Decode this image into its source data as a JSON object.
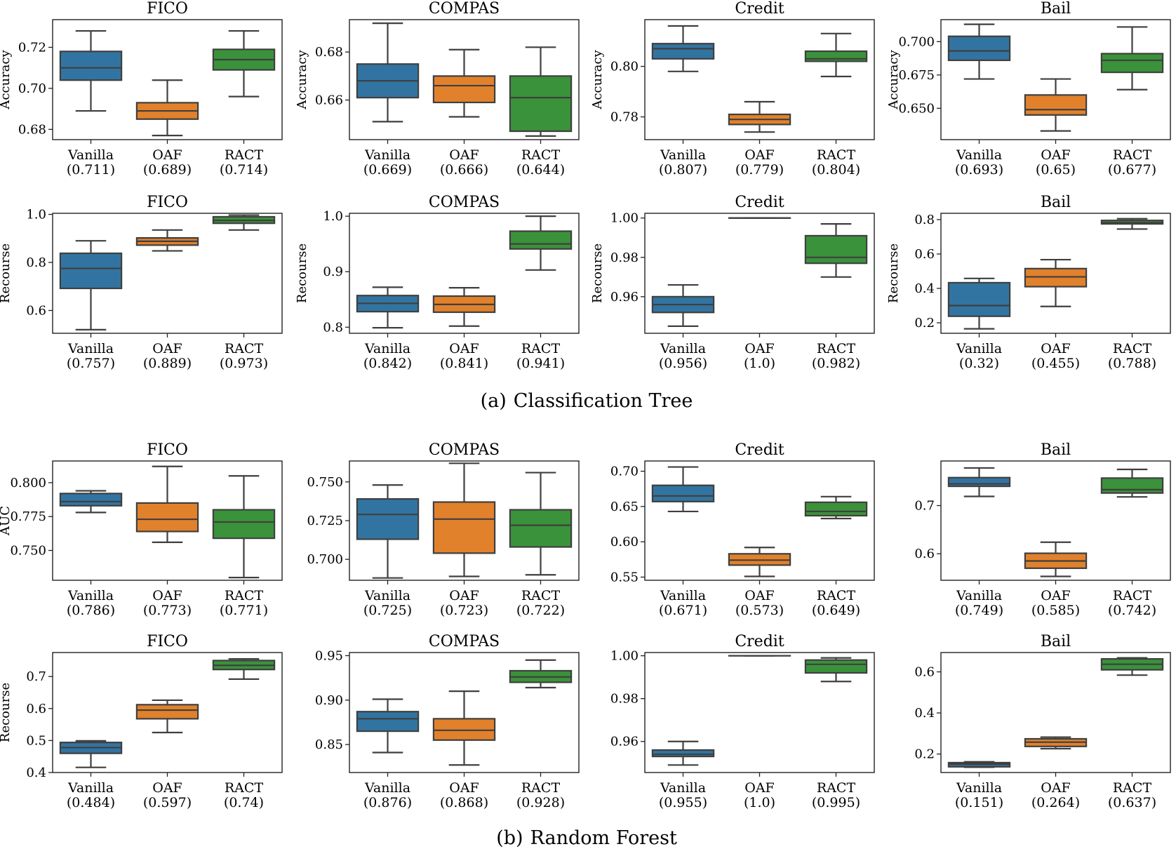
{
  "colors": {
    "Vanilla": "#3274a1",
    "OAF": "#e1812c",
    "RACT": "#3a923a",
    "edge": "#3f3f3f"
  },
  "captions": [
    {
      "label": "(a)",
      "text": "Classification Tree"
    },
    {
      "label": "(b)",
      "text": "Random Forest"
    }
  ],
  "chart_data": [
    {
      "type": "box",
      "model": "Classification Tree",
      "title": "FICO",
      "ylabel": "Accuracy",
      "ylim": [
        0.675,
        0.7335
      ],
      "yticks": [
        0.68,
        0.7,
        0.72
      ],
      "tickfmt": "0.00",
      "categories": [
        "Vanilla",
        "OAF",
        "RACT"
      ],
      "means": [
        "(0.711)",
        "(0.689)",
        "(0.714)"
      ],
      "boxes": [
        {
          "whislo": 0.689,
          "q1": 0.704,
          "med": 0.71,
          "q3": 0.718,
          "whishi": 0.728
        },
        {
          "whislo": 0.677,
          "q1": 0.685,
          "med": 0.689,
          "q3": 0.693,
          "whishi": 0.704
        },
        {
          "whislo": 0.696,
          "q1": 0.709,
          "med": 0.714,
          "q3": 0.719,
          "whishi": 0.728
        }
      ]
    },
    {
      "type": "box",
      "model": "Classification Tree",
      "title": "COMPAS",
      "ylabel": "Accuracy",
      "ylim": [
        0.6435,
        0.6935
      ],
      "yticks": [
        0.66,
        0.68
      ],
      "tickfmt": "0.00",
      "categories": [
        "Vanilla",
        "OAF",
        "RACT"
      ],
      "means": [
        "(0.669)",
        "(0.666)",
        "(0.644)"
      ],
      "boxes": [
        {
          "whislo": 0.651,
          "q1": 0.661,
          "med": 0.668,
          "q3": 0.675,
          "whishi": 0.692
        },
        {
          "whislo": 0.653,
          "q1": 0.659,
          "med": 0.666,
          "q3": 0.67,
          "whishi": 0.681
        },
        {
          "whislo": 0.645,
          "q1": 0.647,
          "med": 0.661,
          "q3": 0.67,
          "whishi": 0.682
        }
      ]
    },
    {
      "type": "box",
      "model": "Classification Tree",
      "title": "Credit",
      "ylabel": "Accuracy",
      "ylim": [
        0.771,
        0.8185
      ],
      "yticks": [
        0.78,
        0.8
      ],
      "tickfmt": "0.00",
      "categories": [
        "Vanilla",
        "OAF",
        "RACT"
      ],
      "means": [
        "(0.807)",
        "(0.779)",
        "(0.804)"
      ],
      "boxes": [
        {
          "whislo": 0.798,
          "q1": 0.803,
          "med": 0.807,
          "q3": 0.809,
          "whishi": 0.816
        },
        {
          "whislo": 0.774,
          "q1": 0.777,
          "med": 0.779,
          "q3": 0.781,
          "whishi": 0.786
        },
        {
          "whislo": 0.796,
          "q1": 0.802,
          "med": 0.803,
          "q3": 0.806,
          "whishi": 0.813
        }
      ]
    },
    {
      "type": "box",
      "model": "Classification Tree",
      "title": "Bail",
      "ylabel": "Accuracy",
      "ylim": [
        0.6265,
        0.7165
      ],
      "yticks": [
        0.65,
        0.675,
        0.7
      ],
      "tickfmt": "0.000",
      "categories": [
        "Vanilla",
        "OAF",
        "RACT"
      ],
      "means": [
        "(0.693)",
        "(0.65)",
        "(0.677)"
      ],
      "boxes": [
        {
          "whislo": 0.672,
          "q1": 0.686,
          "med": 0.693,
          "q3": 0.704,
          "whishi": 0.713
        },
        {
          "whislo": 0.633,
          "q1": 0.645,
          "med": 0.649,
          "q3": 0.66,
          "whishi": 0.672
        },
        {
          "whislo": 0.664,
          "q1": 0.677,
          "med": 0.686,
          "q3": 0.691,
          "whishi": 0.711
        }
      ]
    },
    {
      "type": "box",
      "model": "Classification Tree",
      "title": "FICO",
      "ylabel": "Recourse",
      "ylim": [
        0.505,
        1.0045
      ],
      "yticks": [
        0.6,
        0.8,
        1.0
      ],
      "tickfmt": "0.0",
      "categories": [
        "Vanilla",
        "OAF",
        "RACT"
      ],
      "means": [
        "(0.757)",
        "(0.889)",
        "(0.973)"
      ],
      "boxes": [
        {
          "whislo": 0.52,
          "q1": 0.692,
          "med": 0.775,
          "q3": 0.838,
          "whishi": 0.89
        },
        {
          "whislo": 0.848,
          "q1": 0.872,
          "med": 0.888,
          "q3": 0.902,
          "whishi": 0.935
        },
        {
          "whislo": 0.935,
          "q1": 0.963,
          "med": 0.975,
          "q3": 0.99,
          "whishi": 0.997
        }
      ]
    },
    {
      "type": "box",
      "model": "Classification Tree",
      "title": "COMPAS",
      "ylabel": "Recourse",
      "ylim": [
        0.789,
        1.0052
      ],
      "yticks": [
        0.8,
        0.9,
        1.0
      ],
      "tickfmt": "0.0",
      "categories": [
        "Vanilla",
        "OAF",
        "RACT"
      ],
      "means": [
        "(0.842)",
        "(0.841)",
        "(0.941)"
      ],
      "boxes": [
        {
          "whislo": 0.799,
          "q1": 0.828,
          "med": 0.843,
          "q3": 0.857,
          "whishi": 0.872
        },
        {
          "whislo": 0.802,
          "q1": 0.827,
          "med": 0.841,
          "q3": 0.856,
          "whishi": 0.871
        },
        {
          "whislo": 0.903,
          "q1": 0.941,
          "med": 0.95,
          "q3": 0.973,
          "whishi": 1.0
        }
      ]
    },
    {
      "type": "box",
      "model": "Classification Tree",
      "title": "Credit",
      "ylabel": "Recourse",
      "ylim": [
        0.9414,
        1.0024
      ],
      "yticks": [
        0.96,
        0.98,
        1.0
      ],
      "tickfmt": "0.00",
      "categories": [
        "Vanilla",
        "OAF",
        "RACT"
      ],
      "means": [
        "(0.956)",
        "(1.0)",
        "(0.982)"
      ],
      "boxes": [
        {
          "whislo": 0.945,
          "q1": 0.952,
          "med": 0.956,
          "q3": 0.96,
          "whishi": 0.966
        },
        {
          "whislo": 1.0,
          "q1": 1.0,
          "med": 1.0,
          "q3": 1.0,
          "whishi": 1.0
        },
        {
          "whislo": 0.97,
          "q1": 0.977,
          "med": 0.98,
          "q3": 0.991,
          "whishi": 0.997
        }
      ]
    },
    {
      "type": "box",
      "model": "Classification Tree",
      "title": "Bail",
      "ylabel": "Recourse",
      "ylim": [
        0.139,
        0.8365
      ],
      "yticks": [
        0.2,
        0.4,
        0.6,
        0.8
      ],
      "tickfmt": "0.0",
      "categories": [
        "Vanilla",
        "OAF",
        "RACT"
      ],
      "means": [
        "(0.32)",
        "(0.455)",
        "(0.788)"
      ],
      "boxes": [
        {
          "whislo": 0.165,
          "q1": 0.238,
          "med": 0.3,
          "q3": 0.433,
          "whishi": 0.458
        },
        {
          "whislo": 0.295,
          "q1": 0.41,
          "med": 0.467,
          "q3": 0.515,
          "whishi": 0.567
        },
        {
          "whislo": 0.745,
          "q1": 0.775,
          "med": 0.782,
          "q3": 0.795,
          "whishi": 0.805
        }
      ]
    },
    {
      "type": "box",
      "model": "Random Forest",
      "title": "FICO",
      "ylabel": "AUC",
      "ylim": [
        0.728,
        0.816
      ],
      "yticks": [
        0.75,
        0.775,
        0.8
      ],
      "tickfmt": "0.000",
      "categories": [
        "Vanilla",
        "OAF",
        "RACT"
      ],
      "means": [
        "(0.786)",
        "(0.773)",
        "(0.771)"
      ],
      "boxes": [
        {
          "whislo": 0.778,
          "q1": 0.783,
          "med": 0.786,
          "q3": 0.792,
          "whishi": 0.794
        },
        {
          "whislo": 0.756,
          "q1": 0.764,
          "med": 0.773,
          "q3": 0.785,
          "whishi": 0.812
        },
        {
          "whislo": 0.73,
          "q1": 0.759,
          "med": 0.771,
          "q3": 0.78,
          "whishi": 0.805
        }
      ]
    },
    {
      "type": "box",
      "model": "Random Forest",
      "title": "COMPAS",
      "ylabel": "",
      "ylim": [
        0.6865,
        0.7635
      ],
      "yticks": [
        0.7,
        0.725,
        0.75
      ],
      "tickfmt": "0.000",
      "categories": [
        "Vanilla",
        "OAF",
        "RACT"
      ],
      "means": [
        "(0.725)",
        "(0.723)",
        "(0.722)"
      ],
      "boxes": [
        {
          "whislo": 0.688,
          "q1": 0.713,
          "med": 0.729,
          "q3": 0.739,
          "whishi": 0.748
        },
        {
          "whislo": 0.689,
          "q1": 0.704,
          "med": 0.726,
          "q3": 0.737,
          "whishi": 0.762
        },
        {
          "whislo": 0.69,
          "q1": 0.708,
          "med": 0.722,
          "q3": 0.732,
          "whishi": 0.756
        }
      ]
    },
    {
      "type": "box",
      "model": "Random Forest",
      "title": "Credit",
      "ylabel": "",
      "ylim": [
        0.5455,
        0.7145
      ],
      "yticks": [
        0.55,
        0.6,
        0.65,
        0.7
      ],
      "tickfmt": "0.00",
      "categories": [
        "Vanilla",
        "OAF",
        "RACT"
      ],
      "means": [
        "(0.671)",
        "(0.573)",
        "(0.649)"
      ],
      "boxes": [
        {
          "whislo": 0.643,
          "q1": 0.657,
          "med": 0.665,
          "q3": 0.68,
          "whishi": 0.706
        },
        {
          "whislo": 0.551,
          "q1": 0.567,
          "med": 0.574,
          "q3": 0.583,
          "whishi": 0.592
        },
        {
          "whislo": 0.633,
          "q1": 0.637,
          "med": 0.643,
          "q3": 0.656,
          "whishi": 0.664
        }
      ]
    },
    {
      "type": "box",
      "model": "Random Forest",
      "title": "Bail",
      "ylabel": "",
      "ylim": [
        0.545,
        0.7925
      ],
      "yticks": [
        0.6,
        0.7
      ],
      "tickfmt": "0.0",
      "categories": [
        "Vanilla",
        "OAF",
        "RACT"
      ],
      "means": [
        "(0.749)",
        "(0.585)",
        "(0.742)"
      ],
      "boxes": [
        {
          "whislo": 0.719,
          "q1": 0.74,
          "med": 0.745,
          "q3": 0.758,
          "whishi": 0.778
        },
        {
          "whislo": 0.553,
          "q1": 0.57,
          "med": 0.585,
          "q3": 0.601,
          "whishi": 0.624
        },
        {
          "whislo": 0.718,
          "q1": 0.726,
          "med": 0.733,
          "q3": 0.757,
          "whishi": 0.775
        }
      ]
    },
    {
      "type": "box",
      "model": "Random Forest",
      "title": "FICO",
      "ylabel": "Recourse",
      "ylim": [
        0.4,
        0.775
      ],
      "yticks": [
        0.4,
        0.5,
        0.6,
        0.7
      ],
      "tickfmt": "0.0",
      "categories": [
        "Vanilla",
        "OAF",
        "RACT"
      ],
      "means": [
        "(0.484)",
        "(0.597)",
        "(0.74)"
      ],
      "boxes": [
        {
          "whislo": 0.416,
          "q1": 0.46,
          "med": 0.478,
          "q3": 0.494,
          "whishi": 0.499
        },
        {
          "whislo": 0.525,
          "q1": 0.568,
          "med": 0.595,
          "q3": 0.612,
          "whishi": 0.626
        },
        {
          "whislo": 0.692,
          "q1": 0.722,
          "med": 0.735,
          "q3": 0.75,
          "whishi": 0.755
        }
      ]
    },
    {
      "type": "box",
      "model": "Random Forest",
      "title": "COMPAS",
      "ylabel": "",
      "ylim": [
        0.8185,
        0.9535
      ],
      "yticks": [
        0.85,
        0.9,
        0.95
      ],
      "tickfmt": "0.00",
      "categories": [
        "Vanilla",
        "OAF",
        "RACT"
      ],
      "means": [
        "(0.876)",
        "(0.868)",
        "(0.928)"
      ],
      "boxes": [
        {
          "whislo": 0.841,
          "q1": 0.865,
          "med": 0.879,
          "q3": 0.887,
          "whishi": 0.901
        },
        {
          "whislo": 0.827,
          "q1": 0.855,
          "med": 0.866,
          "q3": 0.879,
          "whishi": 0.91
        },
        {
          "whislo": 0.914,
          "q1": 0.92,
          "med": 0.926,
          "q3": 0.933,
          "whishi": 0.945
        }
      ]
    },
    {
      "type": "box",
      "model": "Random Forest",
      "title": "Credit",
      "ylabel": "",
      "ylim": [
        0.9455,
        1.0015
      ],
      "yticks": [
        0.96,
        0.98,
        1.0
      ],
      "tickfmt": "0.00",
      "categories": [
        "Vanilla",
        "OAF",
        "RACT"
      ],
      "means": [
        "(0.955)",
        "(1.0)",
        "(0.995)"
      ],
      "boxes": [
        {
          "whislo": 0.949,
          "q1": 0.953,
          "med": 0.954,
          "q3": 0.956,
          "whishi": 0.96
        },
        {
          "whislo": 1.0,
          "q1": 1.0,
          "med": 1.0,
          "q3": 1.0,
          "whishi": 1.0
        },
        {
          "whislo": 0.988,
          "q1": 0.992,
          "med": 0.996,
          "q3": 0.998,
          "whishi": 0.999
        }
      ]
    },
    {
      "type": "box",
      "model": "Random Forest",
      "title": "Bail",
      "ylabel": "",
      "ylim": [
        0.11,
        0.694
      ],
      "yticks": [
        0.2,
        0.4,
        0.6
      ],
      "tickfmt": "0.0",
      "categories": [
        "Vanilla",
        "OAF",
        "RACT"
      ],
      "means": [
        "(0.151)",
        "(0.264)",
        "(0.637)"
      ],
      "boxes": [
        {
          "whislo": 0.136,
          "q1": 0.138,
          "med": 0.151,
          "q3": 0.158,
          "whishi": 0.162
        },
        {
          "whislo": 0.226,
          "q1": 0.237,
          "med": 0.258,
          "q3": 0.274,
          "whishi": 0.282
        },
        {
          "whislo": 0.584,
          "q1": 0.61,
          "med": 0.637,
          "q3": 0.663,
          "whishi": 0.668
        }
      ]
    }
  ]
}
